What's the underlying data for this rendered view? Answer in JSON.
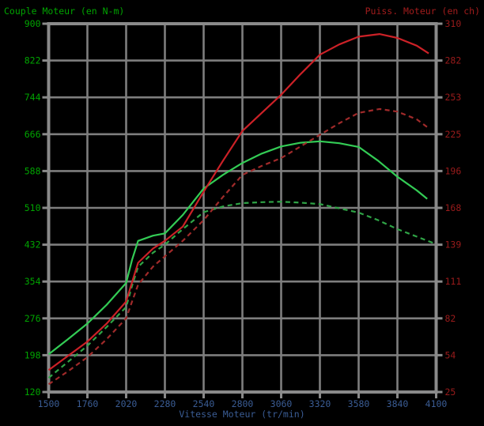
{
  "colors": {
    "background": "#000000",
    "grid": "#7E7E7E",
    "border": "#8A8A8A",
    "tick": "#8A8A8A",
    "torque_label_text": "#00A400",
    "power_label_text": "#991B1B",
    "rpm_label_text": "#3A5C94",
    "solid_torque_curve": "#33CC55",
    "solid_power_curve": "#CC2127",
    "dashed_torque_curve": "#2FA446",
    "dashed_power_curve": "#A02A2A"
  },
  "chart_data": {
    "type": "line",
    "grid": true,
    "legend": "none",
    "x_axis": {
      "label": "Vitesse Moteur (tr/min)",
      "range": [
        1500,
        4100
      ],
      "ticks": [
        1500,
        1760,
        2020,
        2280,
        2540,
        2800,
        3060,
        3320,
        3580,
        3840,
        4100
      ]
    },
    "y_left": {
      "label": "Couple Moteur (en N-m)",
      "range": [
        120,
        900
      ],
      "ticks": [
        120,
        198,
        276,
        354,
        432,
        510,
        588,
        666,
        744,
        822,
        900
      ]
    },
    "y_right": {
      "label": "Puiss. Moteur (en ch)",
      "range": [
        25,
        310
      ],
      "ticks": [
        25,
        54,
        82,
        111,
        139,
        168,
        196,
        225,
        253,
        282,
        310
      ]
    },
    "series": [
      {
        "name": "torque-dashed",
        "axis": "left",
        "style": "dashed",
        "color": "#2FA446",
        "points": [
          [
            1500,
            150
          ],
          [
            1630,
            184
          ],
          [
            1760,
            218
          ],
          [
            1890,
            258
          ],
          [
            2020,
            300
          ],
          [
            2060,
            345
          ],
          [
            2100,
            385
          ],
          [
            2200,
            415
          ],
          [
            2280,
            432
          ],
          [
            2400,
            465
          ],
          [
            2540,
            501
          ],
          [
            2670,
            513
          ],
          [
            2800,
            520
          ],
          [
            2930,
            522
          ],
          [
            3060,
            523
          ],
          [
            3190,
            521
          ],
          [
            3320,
            518
          ],
          [
            3450,
            509
          ],
          [
            3580,
            500
          ],
          [
            3710,
            484
          ],
          [
            3840,
            465
          ],
          [
            3970,
            449
          ],
          [
            4085,
            435
          ]
        ]
      },
      {
        "name": "torque-solid",
        "axis": "left",
        "style": "solid",
        "color": "#33CC55",
        "points": [
          [
            1500,
            200
          ],
          [
            1630,
            232
          ],
          [
            1760,
            265
          ],
          [
            1890,
            305
          ],
          [
            2020,
            351
          ],
          [
            2060,
            400
          ],
          [
            2100,
            440
          ],
          [
            2200,
            451
          ],
          [
            2280,
            456
          ],
          [
            2400,
            495
          ],
          [
            2540,
            551
          ],
          [
            2670,
            580
          ],
          [
            2800,
            605
          ],
          [
            2930,
            625
          ],
          [
            3060,
            640
          ],
          [
            3190,
            648
          ],
          [
            3320,
            651
          ],
          [
            3450,
            647
          ],
          [
            3580,
            639
          ],
          [
            3710,
            610
          ],
          [
            3840,
            576
          ],
          [
            3970,
            547
          ],
          [
            4040,
            529
          ]
        ]
      },
      {
        "name": "power-dashed",
        "axis": "right",
        "style": "dashed",
        "color": "#A02A2A",
        "points": [
          [
            1500,
            31
          ],
          [
            1630,
            41
          ],
          [
            1760,
            52
          ],
          [
            1890,
            66
          ],
          [
            2020,
            82
          ],
          [
            2060,
            95
          ],
          [
            2100,
            108
          ],
          [
            2200,
            122
          ],
          [
            2280,
            130
          ],
          [
            2400,
            142
          ],
          [
            2540,
            158
          ],
          [
            2670,
            176
          ],
          [
            2800,
            193
          ],
          [
            2930,
            200
          ],
          [
            3060,
            206
          ],
          [
            3190,
            215
          ],
          [
            3320,
            224
          ],
          [
            3450,
            233
          ],
          [
            3580,
            241
          ],
          [
            3720,
            244
          ],
          [
            3840,
            242
          ],
          [
            3970,
            236
          ],
          [
            4040,
            230
          ]
        ]
      },
      {
        "name": "power-solid",
        "axis": "right",
        "style": "solid",
        "color": "#CC2127",
        "points": [
          [
            1500,
            42
          ],
          [
            1630,
            53
          ],
          [
            1760,
            64
          ],
          [
            1890,
            78
          ],
          [
            2020,
            95
          ],
          [
            2060,
            110
          ],
          [
            2100,
            125
          ],
          [
            2200,
            136
          ],
          [
            2280,
            142
          ],
          [
            2400,
            153
          ],
          [
            2540,
            180
          ],
          [
            2670,
            204
          ],
          [
            2800,
            227
          ],
          [
            2930,
            241
          ],
          [
            3060,
            255
          ],
          [
            3190,
            271
          ],
          [
            3320,
            286
          ],
          [
            3450,
            294
          ],
          [
            3580,
            300
          ],
          [
            3720,
            302
          ],
          [
            3840,
            299
          ],
          [
            3970,
            293
          ],
          [
            4050,
            287
          ]
        ]
      }
    ]
  }
}
